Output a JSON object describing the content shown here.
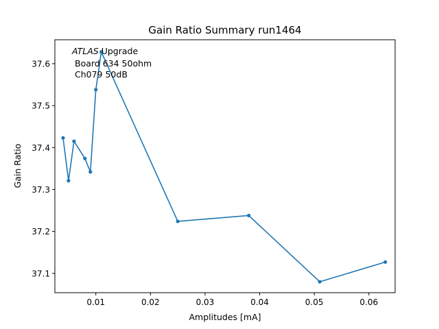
{
  "chart_data": {
    "type": "line",
    "title": "Gain Ratio Summary run1464",
    "xlabel": "Amplitudes [mA]",
    "ylabel": "Gain Ratio",
    "xlim": [
      0.0025,
      0.0648
    ],
    "ylim": [
      37.054,
      37.657
    ],
    "xticks": [
      0.01,
      0.02,
      0.03,
      0.04,
      0.05,
      0.06
    ],
    "xtick_labels": [
      "0.01",
      "0.02",
      "0.03",
      "0.04",
      "0.05",
      "0.06"
    ],
    "yticks": [
      37.1,
      37.2,
      37.3,
      37.4,
      37.5,
      37.6
    ],
    "ytick_labels": [
      "37.1",
      "37.2",
      "37.3",
      "37.4",
      "37.5",
      "37.6"
    ],
    "grid": false,
    "annotation": {
      "line1_italic": "ATLAS",
      "line1_rest": " Upgrade",
      "line2": "Board 634 50ohm",
      "line3": "Ch079 50dB"
    },
    "series": [
      {
        "color": "#1f77b4",
        "marker": "dot",
        "x": [
          0.004,
          0.005,
          0.006,
          0.008,
          0.009,
          0.01,
          0.011,
          0.025,
          0.038,
          0.051,
          0.063
        ],
        "y": [
          37.423,
          37.321,
          37.415,
          37.374,
          37.342,
          37.538,
          37.628,
          37.224,
          37.238,
          37.08,
          37.127
        ]
      }
    ]
  }
}
